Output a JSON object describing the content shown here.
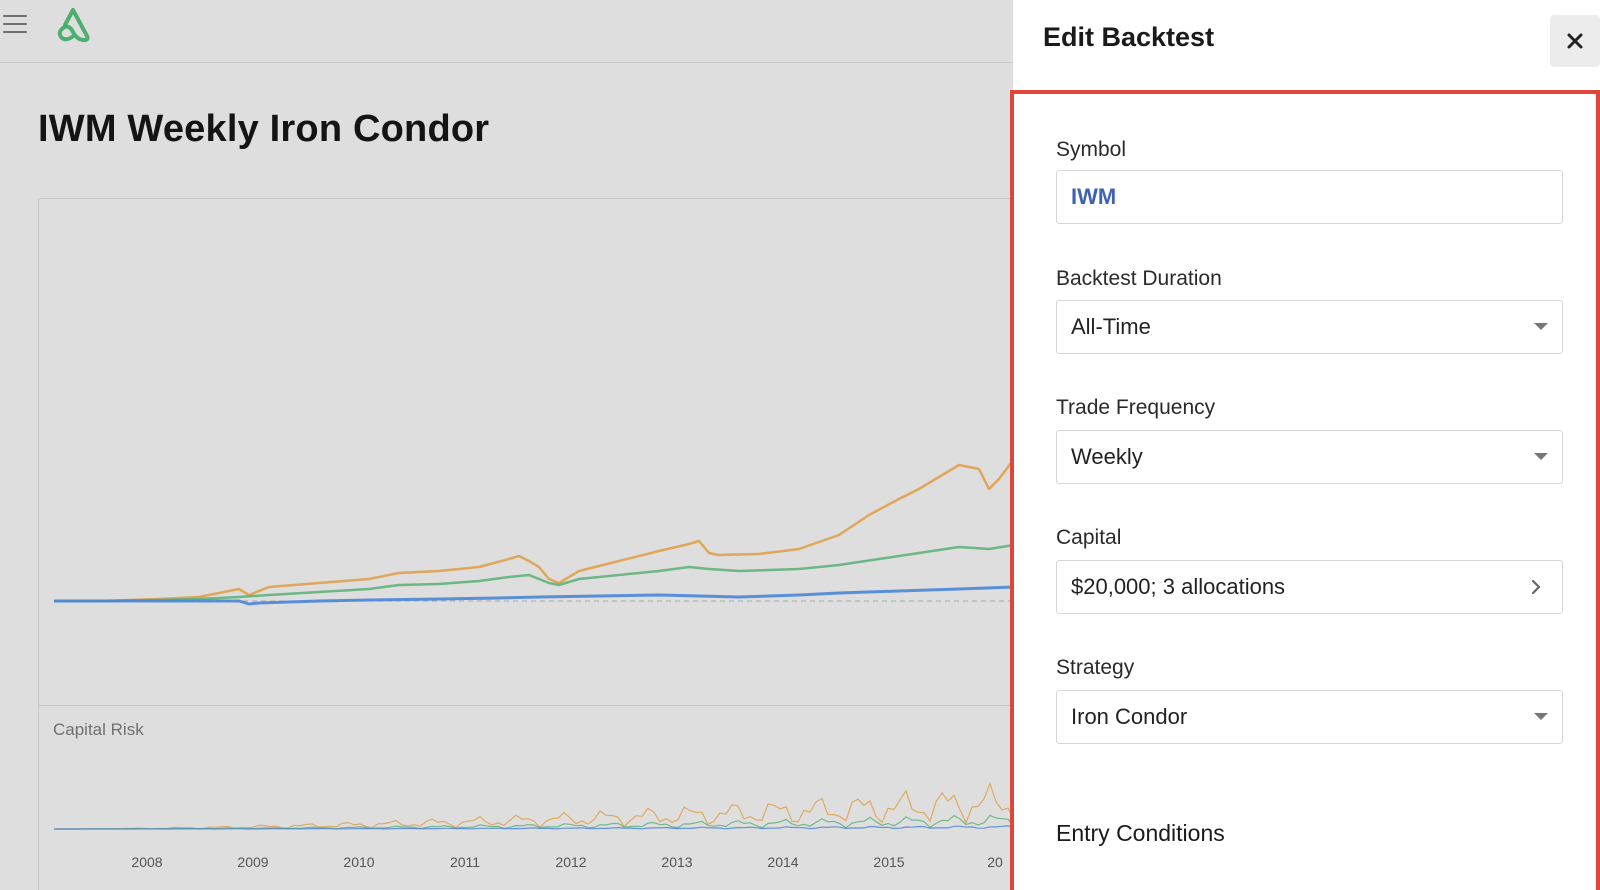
{
  "app": {
    "page_title": "IWM Weekly Iron Condor",
    "menu_icon": "hamburger-icon",
    "logo_icon": "brand-logo-icon",
    "brand_color": "#4caf6e"
  },
  "chart_data": [
    {
      "type": "line",
      "title": "",
      "x_ticks": [
        "2008",
        "2009",
        "2010",
        "2011",
        "2012",
        "2013",
        "2014",
        "2015",
        "20"
      ],
      "series": [
        {
          "color": "#e0a04a"
        },
        {
          "color": "#5fb37a"
        },
        {
          "color": "#4a86d8"
        }
      ],
      "baseline": "dashed"
    },
    {
      "type": "line",
      "title": "Capital Risk",
      "series": [
        {
          "color": "#e0a04a"
        },
        {
          "color": "#5fb37a"
        },
        {
          "color": "#4a86d8"
        }
      ]
    }
  ],
  "panel": {
    "title": "Edit Backtest",
    "close_icon": "close-icon",
    "highlight_color": "#e0453a",
    "fields": {
      "symbol": {
        "label": "Symbol",
        "value": "IWM"
      },
      "duration": {
        "label": "Backtest Duration",
        "value": "All-Time"
      },
      "frequency": {
        "label": "Trade Frequency",
        "value": "Weekly"
      },
      "capital": {
        "label": "Capital",
        "value": "$20,000; 3 allocations"
      },
      "strategy": {
        "label": "Strategy",
        "value": "Iron Condor"
      }
    },
    "entry_conditions": "Entry Conditions"
  }
}
